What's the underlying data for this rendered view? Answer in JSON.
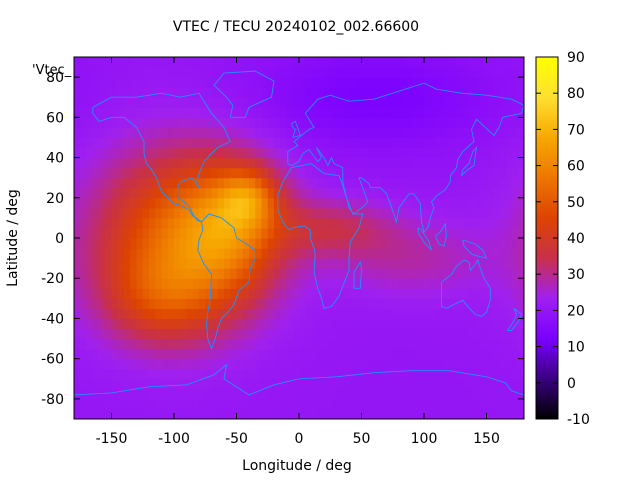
{
  "chart_data": {
    "type": "heatmap",
    "title": "VTEC / TECU 20240102_002.66600",
    "xlabel": "Longitude / deg",
    "ylabel": "Latitude / deg",
    "series_key": "'Vtec_",
    "xlim": [
      -180,
      180
    ],
    "ylim": [
      -90,
      90
    ],
    "x_ticks": [
      -150,
      -100,
      -50,
      0,
      50,
      100,
      150
    ],
    "y_ticks": [
      -80,
      -60,
      -40,
      -20,
      0,
      20,
      40,
      60,
      80
    ],
    "colorbar": {
      "range": [
        -10,
        90
      ],
      "ticks": [
        -10,
        0,
        10,
        20,
        30,
        40,
        50,
        60,
        70,
        80,
        90
      ],
      "palette": [
        "#000000",
        "#3a0080",
        "#7a00ff",
        "#a020f0",
        "#c8304a",
        "#dd4400",
        "#ee7700",
        "#f7a800",
        "#ffe030",
        "#ffff00"
      ]
    },
    "field": {
      "background": 20,
      "features": [
        {
          "name": "main-crest",
          "lon": -95,
          "lat": 0,
          "sigma_lon": 48,
          "sigma_lat": 30,
          "amp": 32
        },
        {
          "name": "south-american-peak",
          "lon": -55,
          "lat": 5,
          "sigma_lon": 28,
          "sigma_lat": 22,
          "amp": 22
        },
        {
          "name": "north-atlantic-peak",
          "lon": -40,
          "lat": 20,
          "sigma_lon": 16,
          "sigma_lat": 10,
          "amp": 20
        },
        {
          "name": "southern-extension",
          "lon": -110,
          "lat": -30,
          "sigma_lon": 32,
          "sigma_lat": 16,
          "amp": 14
        },
        {
          "name": "african-tongue",
          "lon": 25,
          "lat": 5,
          "sigma_lon": 35,
          "sigma_lat": 10,
          "amp": 12
        },
        {
          "name": "indian-ocean-tail",
          "lon": 90,
          "lat": -10,
          "sigma_lon": 45,
          "sigma_lat": 14,
          "amp": 8
        },
        {
          "name": "north-pole-depletion",
          "lon": 60,
          "lat": 70,
          "sigma_lon": 70,
          "sigma_lat": 18,
          "amp": -7
        }
      ]
    },
    "coastlines": [
      {
        "name": "north-america",
        "points": [
          [
            -165,
            65
          ],
          [
            -150,
            70
          ],
          [
            -130,
            70
          ],
          [
            -110,
            72
          ],
          [
            -95,
            70
          ],
          [
            -80,
            72
          ],
          [
            -70,
            62
          ],
          [
            -60,
            55
          ],
          [
            -55,
            48
          ],
          [
            -65,
            45
          ],
          [
            -70,
            42
          ],
          [
            -76,
            38
          ],
          [
            -80,
            32
          ],
          [
            -82,
            27
          ],
          [
            -80,
            25
          ],
          [
            -82,
            28
          ],
          [
            -86,
            30
          ],
          [
            -90,
            29
          ],
          [
            -95,
            28
          ],
          [
            -97,
            25
          ],
          [
            -97,
            20
          ],
          [
            -92,
            18
          ],
          [
            -88,
            16
          ],
          [
            -85,
            12
          ],
          [
            -82,
            9
          ],
          [
            -78,
            8
          ],
          [
            -80,
            9
          ],
          [
            -85,
            11
          ],
          [
            -88,
            14
          ],
          [
            -94,
            16
          ],
          [
            -100,
            17
          ],
          [
            -105,
            20
          ],
          [
            -110,
            23
          ],
          [
            -114,
            30
          ],
          [
            -118,
            34
          ],
          [
            -122,
            37
          ],
          [
            -124,
            42
          ],
          [
            -124,
            48
          ],
          [
            -130,
            55
          ],
          [
            -140,
            60
          ],
          [
            -150,
            60
          ],
          [
            -160,
            58
          ],
          [
            -165,
            62
          ],
          [
            -165,
            65
          ]
        ]
      },
      {
        "name": "south-america",
        "points": [
          [
            -78,
            8
          ],
          [
            -72,
            12
          ],
          [
            -62,
            10
          ],
          [
            -52,
            5
          ],
          [
            -50,
            0
          ],
          [
            -42,
            -3
          ],
          [
            -35,
            -6
          ],
          [
            -35,
            -10
          ],
          [
            -39,
            -15
          ],
          [
            -40,
            -22
          ],
          [
            -48,
            -26
          ],
          [
            -52,
            -33
          ],
          [
            -57,
            -37
          ],
          [
            -62,
            -40
          ],
          [
            -65,
            -45
          ],
          [
            -67,
            -50
          ],
          [
            -70,
            -55
          ],
          [
            -73,
            -50
          ],
          [
            -74,
            -43
          ],
          [
            -73,
            -37
          ],
          [
            -71,
            -30
          ],
          [
            -70,
            -18
          ],
          [
            -76,
            -13
          ],
          [
            -81,
            -6
          ],
          [
            -80,
            -1
          ],
          [
            -77,
            4
          ],
          [
            -78,
            8
          ]
        ]
      },
      {
        "name": "greenland",
        "points": [
          [
            -55,
            60
          ],
          [
            -43,
            60
          ],
          [
            -40,
            65
          ],
          [
            -22,
            70
          ],
          [
            -20,
            78
          ],
          [
            -35,
            83
          ],
          [
            -60,
            82
          ],
          [
            -68,
            76
          ],
          [
            -58,
            70
          ],
          [
            -53,
            66
          ],
          [
            -55,
            60
          ]
        ]
      },
      {
        "name": "africa",
        "points": [
          [
            -17,
            21
          ],
          [
            -13,
            28
          ],
          [
            -6,
            35
          ],
          [
            10,
            37
          ],
          [
            20,
            32
          ],
          [
            32,
            31
          ],
          [
            34,
            28
          ],
          [
            38,
            20
          ],
          [
            43,
            12
          ],
          [
            51,
            12
          ],
          [
            48,
            5
          ],
          [
            41,
            -2
          ],
          [
            40,
            -10
          ],
          [
            40,
            -16
          ],
          [
            35,
            -24
          ],
          [
            32,
            -29
          ],
          [
            26,
            -34
          ],
          [
            20,
            -35
          ],
          [
            18,
            -30
          ],
          [
            15,
            -25
          ],
          [
            12,
            -17
          ],
          [
            13,
            -8
          ],
          [
            12,
            -5
          ],
          [
            9,
            0
          ],
          [
            9,
            4
          ],
          [
            4,
            6
          ],
          [
            -5,
            5
          ],
          [
            -8,
            4
          ],
          [
            -13,
            8
          ],
          [
            -17,
            14
          ],
          [
            -17,
            21
          ]
        ]
      },
      {
        "name": "madagascar",
        "points": [
          [
            44,
            -25
          ],
          [
            49,
            -25
          ],
          [
            50,
            -15
          ],
          [
            49,
            -12
          ],
          [
            44,
            -17
          ],
          [
            44,
            -25
          ]
        ]
      },
      {
        "name": "eurasia",
        "points": [
          [
            -9,
            37
          ],
          [
            -9,
            43
          ],
          [
            -1,
            46
          ],
          [
            -4,
            48
          ],
          [
            2,
            51
          ],
          [
            8,
            54
          ],
          [
            12,
            55
          ],
          [
            10,
            57
          ],
          [
            5,
            62
          ],
          [
            15,
            69
          ],
          [
            25,
            71
          ],
          [
            40,
            68
          ],
          [
            60,
            69
          ],
          [
            80,
            73
          ],
          [
            100,
            77
          ],
          [
            110,
            74
          ],
          [
            130,
            72
          ],
          [
            150,
            71
          ],
          [
            170,
            69
          ],
          [
            180,
            66
          ],
          [
            178,
            62
          ],
          [
            163,
            60
          ],
          [
            160,
            55
          ],
          [
            156,
            51
          ],
          [
            142,
            59
          ],
          [
            138,
            54
          ],
          [
            140,
            48
          ],
          [
            131,
            43
          ],
          [
            127,
            39
          ],
          [
            126,
            35
          ],
          [
            121,
            31
          ],
          [
            121,
            28
          ],
          [
            117,
            24
          ],
          [
            110,
            21
          ],
          [
            106,
            18
          ],
          [
            108,
            15
          ],
          [
            105,
            10
          ],
          [
            103,
            5
          ],
          [
            100,
            3
          ],
          [
            98,
            8
          ],
          [
            97,
            17
          ],
          [
            92,
            22
          ],
          [
            88,
            22
          ],
          [
            80,
            15
          ],
          [
            78,
            8
          ],
          [
            73,
            17
          ],
          [
            70,
            22
          ],
          [
            65,
            25
          ],
          [
            57,
            25
          ],
          [
            56,
            27
          ],
          [
            50,
            30
          ],
          [
            48,
            30
          ],
          [
            55,
            18
          ],
          [
            52,
            16
          ],
          [
            44,
            12
          ],
          [
            40,
            15
          ],
          [
            35,
            28
          ],
          [
            35,
            35
          ],
          [
            28,
            37
          ],
          [
            26,
            40
          ],
          [
            23,
            36
          ],
          [
            20,
            40
          ],
          [
            14,
            45
          ],
          [
            18,
            40
          ],
          [
            15,
            38
          ],
          [
            8,
            44
          ],
          [
            3,
            42
          ],
          [
            0,
            38
          ],
          [
            -6,
            36
          ],
          [
            -9,
            37
          ]
        ]
      },
      {
        "name": "great-britain",
        "points": [
          [
            -5,
            50
          ],
          [
            1,
            51
          ],
          [
            0,
            53
          ],
          [
            -3,
            58
          ],
          [
            -6,
            57
          ],
          [
            -5,
            55
          ],
          [
            -3,
            54
          ],
          [
            -5,
            50
          ]
        ]
      },
      {
        "name": "japan",
        "points": [
          [
            130,
            31
          ],
          [
            135,
            34
          ],
          [
            140,
            36
          ],
          [
            141,
            41
          ],
          [
            142,
            45
          ],
          [
            139,
            43
          ],
          [
            136,
            37
          ],
          [
            131,
            34
          ],
          [
            130,
            31
          ]
        ]
      },
      {
        "name": "australia",
        "points": [
          [
            114,
            -22
          ],
          [
            114,
            -34
          ],
          [
            118,
            -35
          ],
          [
            124,
            -33
          ],
          [
            131,
            -31
          ],
          [
            135,
            -34
          ],
          [
            138,
            -36
          ],
          [
            141,
            -38
          ],
          [
            146,
            -39
          ],
          [
            150,
            -37
          ],
          [
            153,
            -31
          ],
          [
            153,
            -25
          ],
          [
            148,
            -20
          ],
          [
            145,
            -15
          ],
          [
            143,
            -11
          ],
          [
            141,
            -13
          ],
          [
            137,
            -16
          ],
          [
            136,
            -12
          ],
          [
            132,
            -11
          ],
          [
            126,
            -14
          ],
          [
            122,
            -18
          ],
          [
            114,
            -22
          ]
        ]
      },
      {
        "name": "new-guinea",
        "points": [
          [
            131,
            -1
          ],
          [
            141,
            -3
          ],
          [
            147,
            -6
          ],
          [
            150,
            -10
          ],
          [
            143,
            -9
          ],
          [
            138,
            -8
          ],
          [
            132,
            -4
          ],
          [
            131,
            -1
          ]
        ]
      },
      {
        "name": "borneo",
        "points": [
          [
            109,
            1
          ],
          [
            112,
            -3
          ],
          [
            116,
            -4
          ],
          [
            118,
            1
          ],
          [
            117,
            7
          ],
          [
            113,
            3
          ],
          [
            109,
            1
          ]
        ]
      },
      {
        "name": "sumatra",
        "points": [
          [
            95,
            5
          ],
          [
            98,
            4
          ],
          [
            104,
            -2
          ],
          [
            106,
            -6
          ],
          [
            101,
            -3
          ],
          [
            96,
            2
          ],
          [
            95,
            5
          ]
        ]
      },
      {
        "name": "new-zealand",
        "points": [
          [
            172,
            -35
          ],
          [
            178,
            -38
          ],
          [
            175,
            -42
          ],
          [
            170,
            -46
          ],
          [
            167,
            -46
          ],
          [
            172,
            -41
          ],
          [
            174,
            -38
          ],
          [
            172,
            -35
          ]
        ]
      },
      {
        "name": "antarctica",
        "points": [
          [
            -180,
            -78
          ],
          [
            -150,
            -77
          ],
          [
            -120,
            -74
          ],
          [
            -90,
            -73
          ],
          [
            -68,
            -68
          ],
          [
            -58,
            -63
          ],
          [
            -60,
            -70
          ],
          [
            -40,
            -78
          ],
          [
            -20,
            -73
          ],
          [
            0,
            -70
          ],
          [
            30,
            -69
          ],
          [
            60,
            -67
          ],
          [
            90,
            -66
          ],
          [
            120,
            -66
          ],
          [
            150,
            -69
          ],
          [
            165,
            -72
          ],
          [
            170,
            -76
          ],
          [
            180,
            -78
          ]
        ]
      }
    ]
  }
}
